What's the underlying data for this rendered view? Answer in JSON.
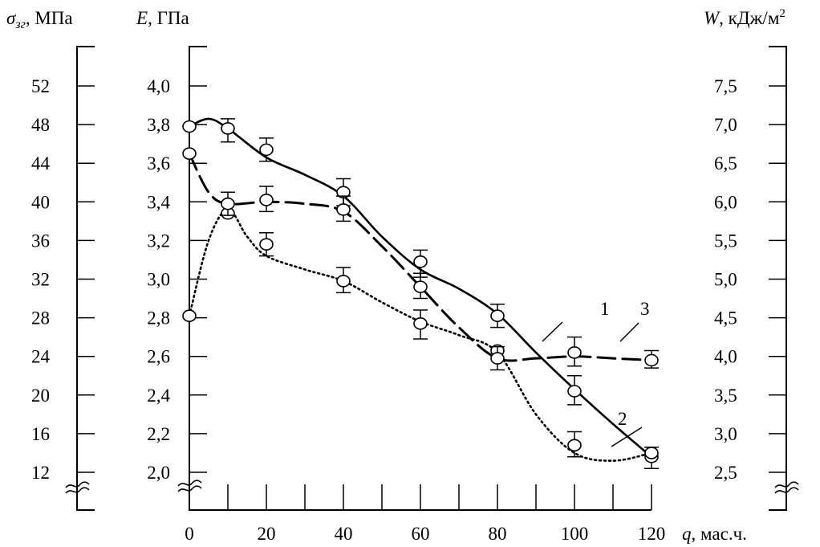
{
  "chart_data": {
    "type": "line",
    "x": [
      0,
      10,
      20,
      40,
      60,
      80,
      100,
      120
    ],
    "xticks": [
      0,
      20,
      40,
      60,
      80,
      100,
      120
    ],
    "xlim": [
      0,
      120
    ],
    "axes": {
      "sigma": {
        "label_symbol": "σ",
        "label_sub": "зг",
        "label_unit": ", МПа",
        "ticks": [
          "12",
          "16",
          "20",
          "24",
          "28",
          "32",
          "36",
          "40",
          "44",
          "48",
          "52"
        ],
        "range": [
          12,
          52
        ]
      },
      "E": {
        "label_symbol": "E",
        "label_unit": ", ГПа",
        "ticks": [
          "2,0",
          "2,2",
          "2,4",
          "2,6",
          "2,8",
          "3,0",
          "3,2",
          "3,4",
          "3,6",
          "3,8",
          "4,0"
        ],
        "range": [
          2.0,
          4.0
        ]
      },
      "W": {
        "label_symbol": "W",
        "label_unit": ", кДж/м",
        "label_sup": "2",
        "ticks": [
          "2,5",
          "3,0",
          "3,5",
          "4,0",
          "4,5",
          "5,0",
          "5,5",
          "6,0",
          "6,5",
          "7,0",
          "7,5"
        ],
        "range": [
          2.5,
          7.5
        ]
      },
      "x": {
        "label_symbol": "q",
        "label_unit": ", мас.ч."
      }
    },
    "series": [
      {
        "label": "1",
        "style": "solid",
        "axis": "E",
        "points": [
          [
            0,
            3.79
          ],
          [
            10,
            3.78
          ],
          [
            20,
            3.67
          ],
          [
            40,
            3.45
          ],
          [
            60,
            3.09
          ],
          [
            80,
            2.81
          ],
          [
            100,
            2.42
          ],
          [
            120,
            2.08
          ]
        ],
        "curve": [
          [
            0,
            3.79
          ],
          [
            5,
            3.83
          ],
          [
            10,
            3.78
          ],
          [
            20,
            3.63
          ],
          [
            30,
            3.54
          ],
          [
            40,
            3.43
          ],
          [
            50,
            3.22
          ],
          [
            60,
            3.05
          ],
          [
            70,
            2.95
          ],
          [
            80,
            2.82
          ],
          [
            90,
            2.62
          ],
          [
            100,
            2.43
          ],
          [
            110,
            2.25
          ],
          [
            120,
            2.08
          ]
        ],
        "errors": [
          [
            10,
            3.83,
            3.71
          ],
          [
            20,
            3.73,
            3.61
          ],
          [
            40,
            3.52,
            3.38
          ],
          [
            60,
            3.15,
            3.01
          ],
          [
            80,
            2.87,
            2.75
          ],
          [
            100,
            2.5,
            2.35
          ],
          [
            120,
            2.13,
            2.02
          ]
        ]
      },
      {
        "label": "2",
        "style": "dotted",
        "axis": "E",
        "points": [
          [
            0,
            2.81
          ],
          [
            10,
            3.34
          ],
          [
            20,
            3.18
          ],
          [
            40,
            2.99
          ],
          [
            60,
            2.77
          ],
          [
            80,
            2.63
          ],
          [
            100,
            2.14
          ],
          [
            120,
            2.1
          ]
        ],
        "curve": [
          [
            0,
            2.81
          ],
          [
            5,
            3.2
          ],
          [
            10,
            3.36
          ],
          [
            15,
            3.22
          ],
          [
            20,
            3.12
          ],
          [
            30,
            3.05
          ],
          [
            40,
            2.99
          ],
          [
            50,
            2.88
          ],
          [
            60,
            2.78
          ],
          [
            70,
            2.71
          ],
          [
            80,
            2.62
          ],
          [
            90,
            2.3
          ],
          [
            100,
            2.1
          ],
          [
            110,
            2.06
          ],
          [
            120,
            2.1
          ]
        ],
        "errors": [
          [
            20,
            3.24,
            3.12
          ],
          [
            40,
            3.06,
            2.93
          ],
          [
            60,
            2.84,
            2.69
          ],
          [
            100,
            2.21,
            2.08
          ]
        ]
      },
      {
        "label": "3",
        "style": "dashed",
        "axis": "E",
        "points": [
          [
            0,
            3.65
          ],
          [
            10,
            3.39
          ],
          [
            20,
            3.41
          ],
          [
            40,
            3.36
          ],
          [
            60,
            2.96
          ],
          [
            80,
            2.59
          ],
          [
            100,
            2.62
          ],
          [
            120,
            2.58
          ]
        ],
        "curve": [
          [
            0,
            3.65
          ],
          [
            5,
            3.45
          ],
          [
            10,
            3.39
          ],
          [
            20,
            3.4
          ],
          [
            30,
            3.39
          ],
          [
            40,
            3.35
          ],
          [
            50,
            3.17
          ],
          [
            60,
            2.96
          ],
          [
            70,
            2.75
          ],
          [
            80,
            2.59
          ],
          [
            90,
            2.59
          ],
          [
            100,
            2.6
          ],
          [
            110,
            2.59
          ],
          [
            120,
            2.58
          ]
        ],
        "errors": [
          [
            10,
            3.45,
            3.33
          ],
          [
            20,
            3.48,
            3.35
          ],
          [
            40,
            3.43,
            3.3
          ],
          [
            60,
            3.03,
            2.9
          ],
          [
            80,
            2.65,
            2.53
          ],
          [
            100,
            2.7,
            2.55
          ],
          [
            120,
            2.63,
            2.54
          ]
        ]
      }
    ]
  }
}
